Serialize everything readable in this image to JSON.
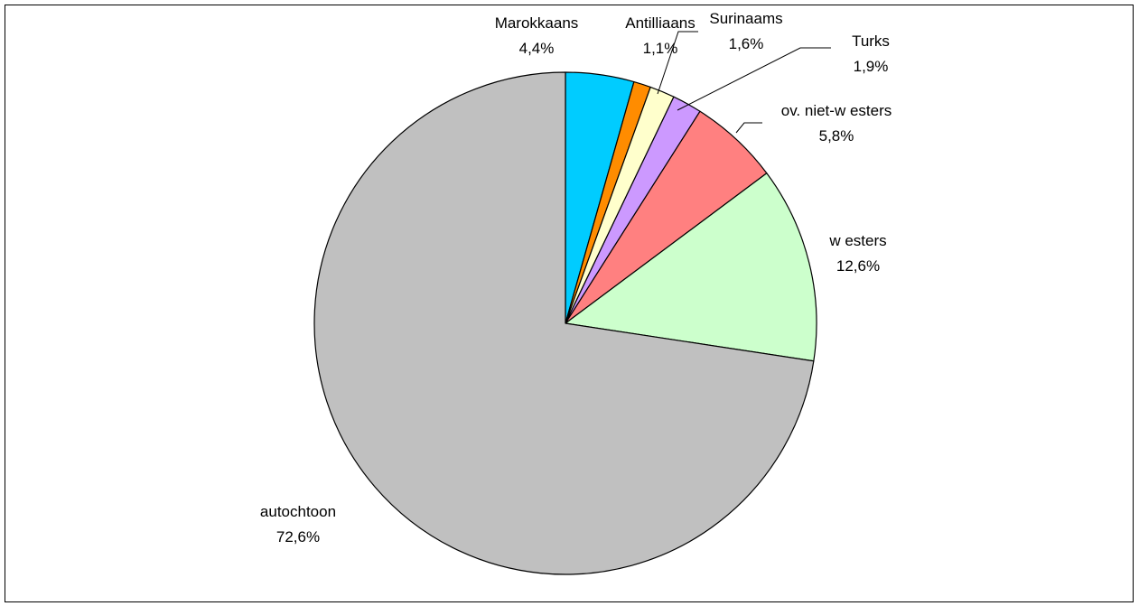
{
  "chart_data": {
    "type": "pie",
    "start_angle_deg": 0,
    "direction": "clockwise",
    "slices": [
      {
        "label": "Marokkaans",
        "value": 4.4,
        "value_text": "4,4%",
        "color": "#00ccff"
      },
      {
        "label": "Antilliaans",
        "value": 1.1,
        "value_text": "1,1%",
        "color": "#ff8c00"
      },
      {
        "label": "Surinaams",
        "value": 1.6,
        "value_text": "1,6%",
        "color": "#ffffcc"
      },
      {
        "label": "Turks",
        "value": 1.9,
        "value_text": "1,9%",
        "color": "#cc99ff"
      },
      {
        "label": "ov. niet-w esters",
        "value": 5.8,
        "value_text": "5,8%",
        "color": "#ff8080"
      },
      {
        "label": "w esters",
        "value": 12.6,
        "value_text": "12,6%",
        "color": "#ccffcc"
      },
      {
        "label": "autochtoon",
        "value": 72.6,
        "value_text": "72,6%",
        "color": "#c0c0c0"
      }
    ]
  }
}
